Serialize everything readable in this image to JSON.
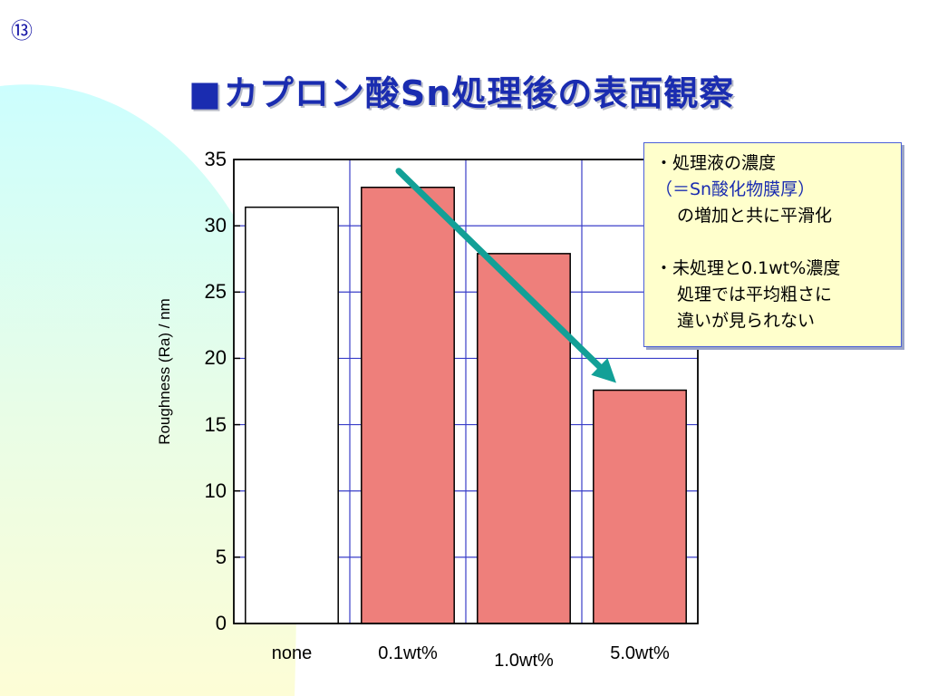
{
  "slide": {
    "number": "⑬",
    "title_square": "■",
    "title": "カプロン酸Sn処理後の表面観察"
  },
  "note": {
    "line1": "・処理液の濃度",
    "line2": "（＝Sn酸化物膜厚）",
    "line3": "の増加と共に平滑化",
    "line4": "・未処理と0.1wt%濃度",
    "line5": "処理では平均粗さに",
    "line6": "違いが見られない"
  },
  "chart_data": {
    "type": "bar",
    "categories": [
      "none",
      "0.1wt%",
      "1.0wt%",
      "5.0wt%"
    ],
    "values": [
      31.4,
      32.9,
      27.9,
      17.6
    ],
    "bar_colors": [
      "#ffffff",
      "#ee7f7b",
      "#ee7f7b",
      "#ee7f7b"
    ],
    "ylabel": "Roughness (Ra) / nm",
    "yticks": [
      "0",
      "5",
      "10",
      "15",
      "20",
      "25",
      "30",
      "35"
    ],
    "ylim": [
      0,
      35
    ],
    "grid": true,
    "annotation": "decreasing trend arrow from 0.1wt% to 5.0wt%"
  },
  "colors": {
    "grid": "#3a3ec8",
    "arrow": "#12a097",
    "title": "#1a2cb0",
    "bg_cyan": "#d6fdfd",
    "bg_yellow": "#fdfdd8"
  }
}
